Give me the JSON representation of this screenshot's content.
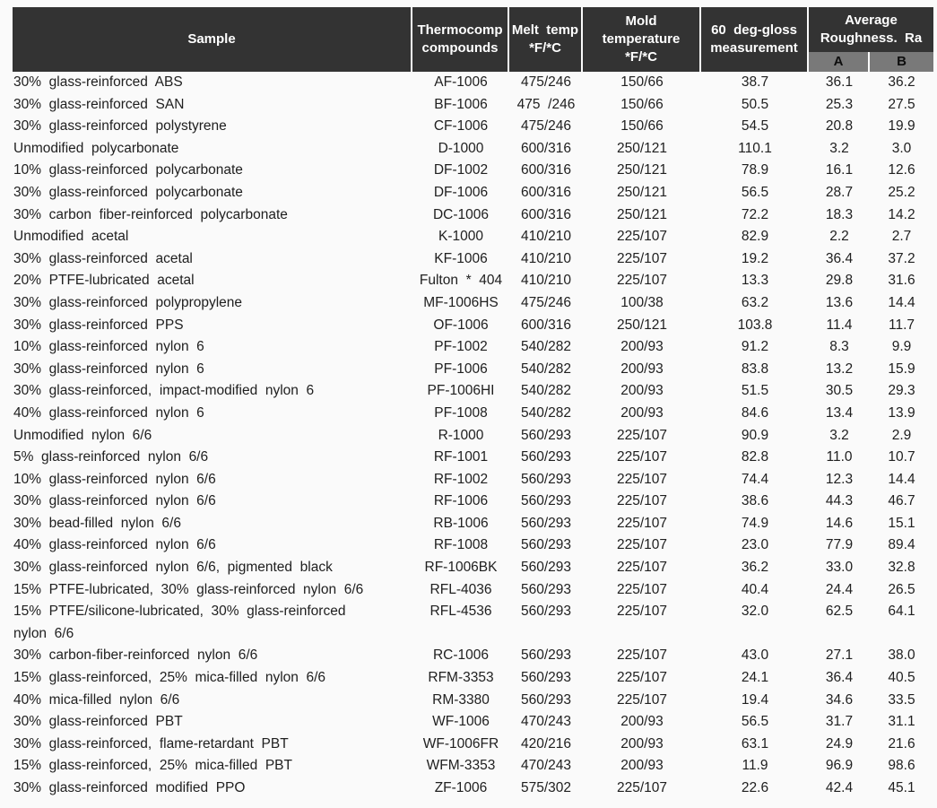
{
  "colors": {
    "page_bg": "#fafafa",
    "header_bg": "#333333",
    "header_text": "#ffffff",
    "subheader_bg": "#797979",
    "body_text": "#202020"
  },
  "chart_data": {
    "type": "table",
    "header": {
      "sample": "Sample",
      "compound": "Thermocomp\ncompounds",
      "melt": "Melt  temp\n*F/*C",
      "mold": "Mold\ntemperature\n*F/*C",
      "gloss": "60  deg-gloss\nmeasurement",
      "avg_roughness": "Average\nRoughness.  Ra",
      "sub_a": "A",
      "sub_b": "B"
    },
    "rows": [
      {
        "sample": "30%  glass-reinforced  ABS",
        "compound": "AF-1006",
        "melt": "475/246",
        "mold": "150/66",
        "gloss": "38.7",
        "a": "36.1",
        "b": "36.2"
      },
      {
        "sample": "30%  glass-reinforced  SAN",
        "compound": "BF-1006",
        "melt": "475  /246",
        "mold": "150/66",
        "gloss": "50.5",
        "a": "25.3",
        "b": "27.5"
      },
      {
        "sample": "30%  glass-reinforced  polystyrene",
        "compound": "CF-1006",
        "melt": "475/246",
        "mold": "150/66",
        "gloss": "54.5",
        "a": "20.8",
        "b": "19.9"
      },
      {
        "sample": "Unmodified  polycarbonate",
        "compound": "D-1000",
        "melt": "600/316",
        "mold": "250/121",
        "gloss": "110.1",
        "a": "3.2",
        "b": "3.0"
      },
      {
        "sample": "10%  glass-reinforced  polycarbonate",
        "compound": "DF-1002",
        "melt": "600/316",
        "mold": "250/121",
        "gloss": "78.9",
        "a": "16.1",
        "b": "12.6"
      },
      {
        "sample": "30%  glass-reinforced  polycarbonate",
        "compound": "DF-1006",
        "melt": "600/316",
        "mold": "250/121",
        "gloss": "56.5",
        "a": "28.7",
        "b": "25.2"
      },
      {
        "sample": "30%  carbon  fiber-reinforced  polycarbonate",
        "compound": "DC-1006",
        "melt": "600/316",
        "mold": "250/121",
        "gloss": "72.2",
        "a": "18.3",
        "b": "14.2"
      },
      {
        "sample": "Unmodified  acetal",
        "compound": "K-1000",
        "melt": "410/210",
        "mold": "225/107",
        "gloss": "82.9",
        "a": "2.2",
        "b": "2.7"
      },
      {
        "sample": "30%  glass-reinforced  acetal",
        "compound": "KF-1006",
        "melt": "410/210",
        "mold": "225/107",
        "gloss": "19.2",
        "a": "36.4",
        "b": "37.2"
      },
      {
        "sample": "20%  PTFE-lubricated  acetal",
        "compound": "Fulton  *  404",
        "melt": "410/210",
        "mold": "225/107",
        "gloss": "13.3",
        "a": "29.8",
        "b": "31.6"
      },
      {
        "sample": "30%  glass-reinforced  polypropylene",
        "compound": "MF-1006HS",
        "melt": "475/246",
        "mold": "100/38",
        "gloss": "63.2",
        "a": "13.6",
        "b": "14.4"
      },
      {
        "sample": "30%  glass-reinforced  PPS",
        "compound": "OF-1006",
        "melt": "600/316",
        "mold": "250/121",
        "gloss": "103.8",
        "a": "11.4",
        "b": "11.7"
      },
      {
        "sample": "10%  glass-reinforced  nylon  6",
        "compound": "PF-1002",
        "melt": "540/282",
        "mold": "200/93",
        "gloss": "91.2",
        "a": "8.3",
        "b": "9.9"
      },
      {
        "sample": "30%  glass-reinforced  nylon  6",
        "compound": "PF-1006",
        "melt": "540/282",
        "mold": "200/93",
        "gloss": "83.8",
        "a": "13.2",
        "b": "15.9"
      },
      {
        "sample": "30%  glass-reinforced,  impact-modified  nylon  6",
        "compound": "PF-1006HI",
        "melt": "540/282",
        "mold": "200/93",
        "gloss": "51.5",
        "a": "30.5",
        "b": "29.3"
      },
      {
        "sample": "40%  glass-reinforced  nylon  6",
        "compound": "PF-1008",
        "melt": "540/282",
        "mold": "200/93",
        "gloss": "84.6",
        "a": "13.4",
        "b": "13.9"
      },
      {
        "sample": "Unmodified  nylon  6/6",
        "compound": "R-1000",
        "melt": "560/293",
        "mold": "225/107",
        "gloss": "90.9",
        "a": "3.2",
        "b": "2.9"
      },
      {
        "sample": "5%  glass-reinforced  nylon  6/6",
        "compound": "RF-1001",
        "melt": "560/293",
        "mold": "225/107",
        "gloss": "82.8",
        "a": "11.0",
        "b": "10.7"
      },
      {
        "sample": "10%  glass-reinforced  nylon  6/6",
        "compound": "RF-1002",
        "melt": "560/293",
        "mold": "225/107",
        "gloss": "74.4",
        "a": "12.3",
        "b": "14.4"
      },
      {
        "sample": "30%  glass-reinforced  nylon  6/6",
        "compound": "RF-1006",
        "melt": "560/293",
        "mold": "225/107",
        "gloss": "38.6",
        "a": "44.3",
        "b": "46.7"
      },
      {
        "sample": "30%  bead-filled  nylon  6/6",
        "compound": "RB-1006",
        "melt": "560/293",
        "mold": "225/107",
        "gloss": "74.9",
        "a": "14.6",
        "b": "15.1"
      },
      {
        "sample": "40%  glass-reinforced  nylon  6/6",
        "compound": "RF-1008",
        "melt": "560/293",
        "mold": "225/107",
        "gloss": "23.0",
        "a": "77.9",
        "b": "89.4"
      },
      {
        "sample": "30%  glass-reinforced  nylon  6/6,  pigmented  black",
        "compound": "RF-1006BK",
        "melt": "560/293",
        "mold": "225/107",
        "gloss": "36.2",
        "a": "33.0",
        "b": "32.8"
      },
      {
        "sample": "15%  PTFE-lubricated,  30%  glass-reinforced  nylon  6/6",
        "compound": "RFL-4036",
        "melt": "560/293",
        "mold": "225/107",
        "gloss": "40.4",
        "a": "24.4",
        "b": "26.5"
      },
      {
        "sample": "15%  PTFE/silicone-lubricated,  30%  glass-reinforced\nnylon  6/6",
        "compound": "RFL-4536",
        "melt": "560/293",
        "mold": "225/107",
        "gloss": "32.0",
        "a": "62.5",
        "b": "64.1"
      },
      {
        "sample": "30%  carbon-fiber-reinforced  nylon  6/6",
        "compound": "RC-1006",
        "melt": "560/293",
        "mold": "225/107",
        "gloss": "43.0",
        "a": "27.1",
        "b": "38.0"
      },
      {
        "sample": "15%  glass-reinforced,  25%  mica-filled  nylon  6/6",
        "compound": "RFM-3353",
        "melt": "560/293",
        "mold": "225/107",
        "gloss": "24.1",
        "a": "36.4",
        "b": "40.5"
      },
      {
        "sample": "40%  mica-filled  nylon  6/6",
        "compound": "RM-3380",
        "melt": "560/293",
        "mold": "225/107",
        "gloss": "19.4",
        "a": "34.6",
        "b": "33.5"
      },
      {
        "sample": "30%  glass-reinforced  PBT",
        "compound": "WF-1006",
        "melt": "470/243",
        "mold": "200/93",
        "gloss": "56.5",
        "a": "31.7",
        "b": "31.1"
      },
      {
        "sample": "30%  glass-reinforced,  flame-retardant  PBT",
        "compound": "WF-1006FR",
        "melt": "420/216",
        "mold": "200/93",
        "gloss": "63.1",
        "a": "24.9",
        "b": "21.6"
      },
      {
        "sample": "15%  glass-reinforced,  25%  mica-filled  PBT",
        "compound": "WFM-3353",
        "melt": "470/243",
        "mold": "200/93",
        "gloss": "11.9",
        "a": "96.9",
        "b": "98.6"
      },
      {
        "sample": "30%  glass-reinforced  modified  PPO",
        "compound": "ZF-1006",
        "melt": "575/302",
        "mold": "225/107",
        "gloss": "22.6",
        "a": "42.4",
        "b": "45.1"
      }
    ]
  }
}
